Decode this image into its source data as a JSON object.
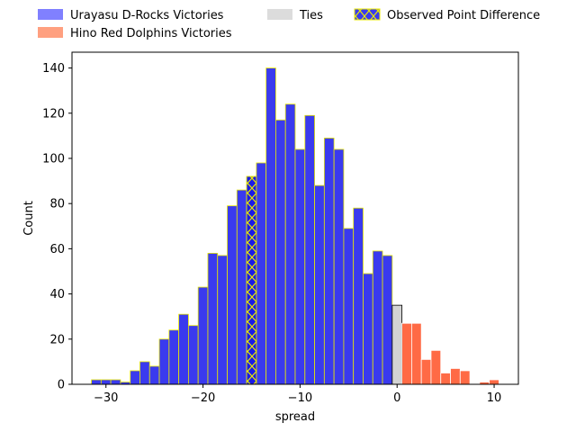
{
  "chart_data": {
    "type": "bar",
    "xlabel": "spread",
    "ylabel": "Count",
    "xlim": [
      -33.5,
      12.5
    ],
    "ylim": [
      0,
      147
    ],
    "x_ticks": [
      -30,
      -20,
      -10,
      0,
      10
    ],
    "x_tick_labels": [
      "−30",
      "−20",
      "−10",
      "0",
      "10"
    ],
    "y_ticks": [
      0,
      20,
      40,
      60,
      80,
      100,
      120,
      140
    ],
    "y_tick_labels": [
      "0",
      "20",
      "40",
      "60",
      "80",
      "100",
      "120",
      "140"
    ],
    "bin_width": 1,
    "grid": false,
    "legend_position": "above plot, three columns",
    "legend": [
      {
        "label": "Urayasu D-Rocks Victories",
        "kind": "patch-light",
        "color": "#8080ff"
      },
      {
        "label": "Hino Red Dolphins Victories",
        "kind": "patch-light",
        "color": "#ffa080"
      },
      {
        "label": "Ties",
        "kind": "patch-light",
        "color": "#dcdcdc"
      },
      {
        "label": "Observed Point Difference",
        "kind": "patch-hatched",
        "color": "#3a3aee"
      }
    ],
    "series": [
      {
        "name": "Urayasu D-Rocks Victories",
        "color": "#3a3aee",
        "edge": "#e8e800",
        "x": [
          -31,
          -30,
          -29,
          -28,
          -27,
          -26,
          -25,
          -24,
          -23,
          -22,
          -21,
          -20,
          -19,
          -18,
          -17,
          -16,
          -15,
          -14,
          -13,
          -12,
          -11,
          -10,
          -9,
          -8,
          -7,
          -6,
          -5,
          -4,
          -3,
          -2,
          -1
        ],
        "values": [
          2,
          2,
          2,
          1,
          6,
          10,
          8,
          20,
          24,
          31,
          26,
          43,
          58,
          57,
          79,
          86,
          92,
          98,
          140,
          117,
          124,
          104,
          119,
          88,
          109,
          104,
          69,
          78,
          49,
          59,
          57
        ]
      },
      {
        "name": "Ties",
        "color": "#d3d3d3",
        "edge": "#000000",
        "x": [
          0
        ],
        "values": [
          35
        ]
      },
      {
        "name": "Hino Red Dolphins Victories",
        "color": "#ff6a45",
        "edge": "#ffffff",
        "x": [
          1,
          2,
          3,
          4,
          5,
          6,
          7,
          8,
          9,
          10
        ],
        "values": [
          27,
          27,
          11,
          15,
          5,
          7,
          6,
          0,
          1,
          2
        ]
      },
      {
        "name": "Observed Point Difference",
        "color": "#1a1ae6",
        "edge": "#e8e800",
        "hatch": "x",
        "x": [
          -15
        ],
        "values": [
          92
        ]
      }
    ]
  }
}
